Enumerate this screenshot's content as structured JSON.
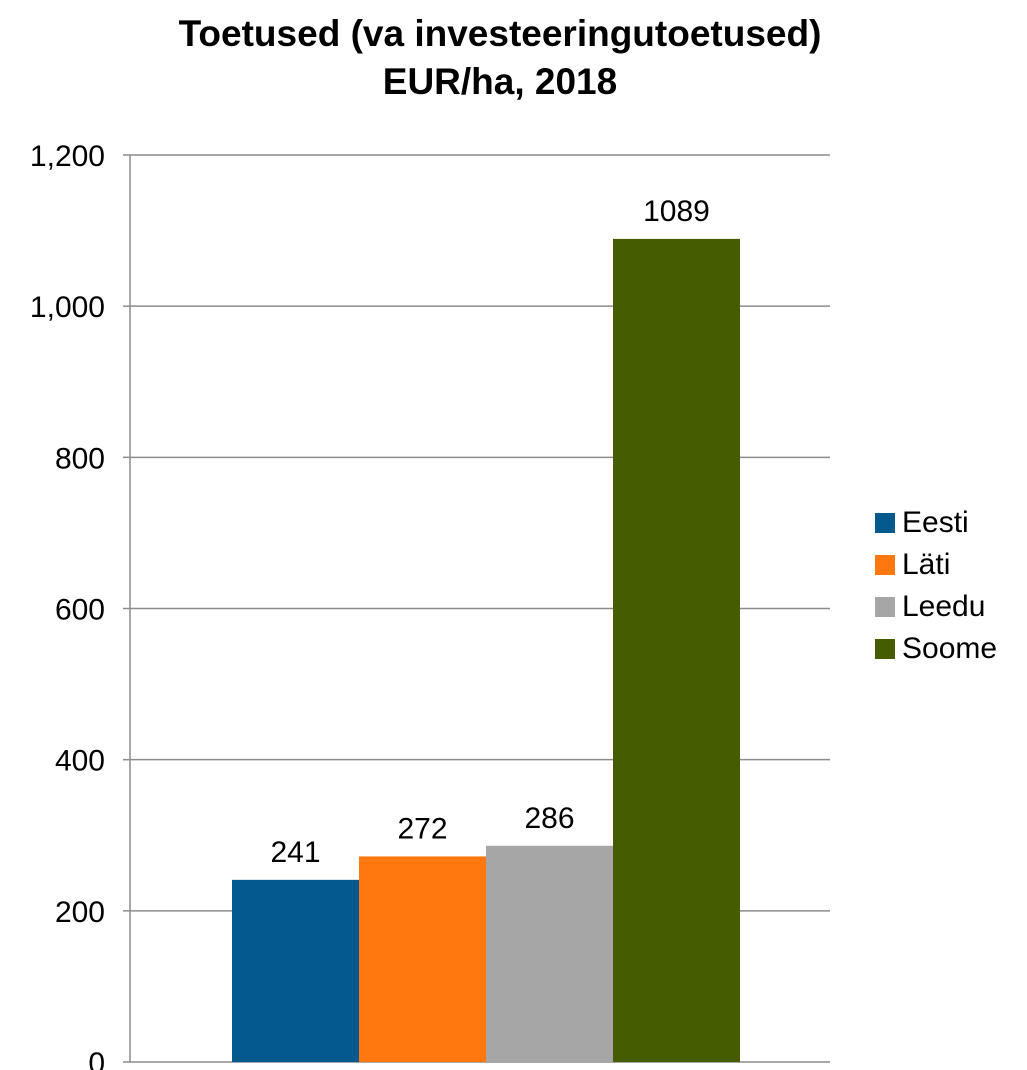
{
  "chart_data": {
    "type": "bar",
    "title_line1": "Toetused (va investeeringutoetused)",
    "title_line2": "EUR/ha, 2018",
    "categories": [
      "Eesti",
      "Läti",
      "Leedu",
      "Soome"
    ],
    "values": [
      241,
      272,
      286,
      1089
    ],
    "data_labels": [
      "241",
      "272",
      "286",
      "1089"
    ],
    "colors": [
      "#045a8d",
      "#ff780f",
      "#a6a6a6",
      "#465c00"
    ],
    "ylim": [
      0,
      1200
    ],
    "yticks": [
      0,
      200,
      400,
      600,
      800,
      1000,
      1200
    ],
    "ytick_labels": [
      "0",
      "200",
      "400",
      "600",
      "800",
      "1,000",
      "1,200"
    ],
    "grid": true,
    "legend_position": "right",
    "xlabel": "",
    "ylabel": ""
  }
}
